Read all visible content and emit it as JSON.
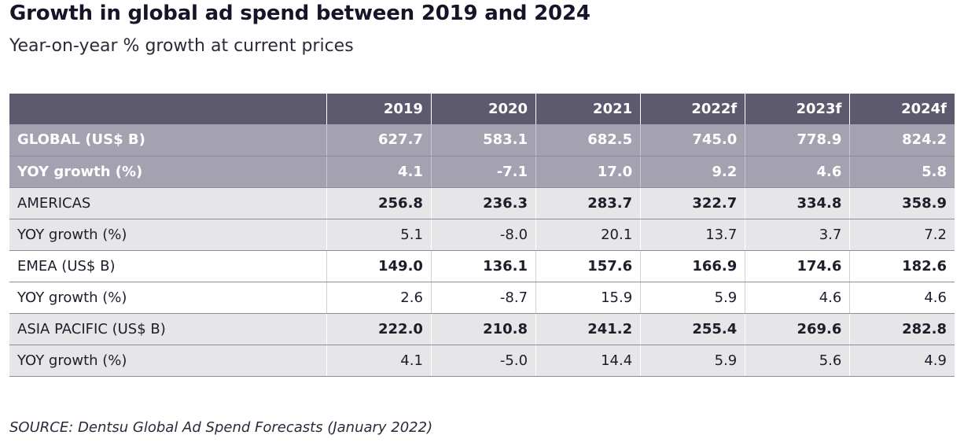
{
  "title": "Growth in global ad spend between 2019 and 2024",
  "subtitle": "Year-on-year % growth at current prices",
  "source": "SOURCE: Dentsu Global Ad Spend Forecasts (January 2022)",
  "colors": {
    "header_bg": "#5d596e",
    "global_bg": "#a4a1b1",
    "grey_row_bg": "#e6e6e8",
    "white_row_bg": "#ffffff",
    "text_dark": "#1d1d2b"
  },
  "chart_data": {
    "type": "table",
    "title": "Growth in global ad spend between 2019 and 2024",
    "subtitle": "Year-on-year % growth at current prices",
    "columns": [
      "",
      "2019",
      "2020",
      "2021",
      "2022f",
      "2023f",
      "2024f"
    ],
    "rows": [
      {
        "label": "GLOBAL (US$ B)",
        "style": "global",
        "values": [
          "627.7",
          "583.1",
          "682.5",
          "745.0",
          "778.9",
          "824.2"
        ]
      },
      {
        "label": "YOY growth (%)",
        "style": "global",
        "values": [
          "4.1",
          "-7.1",
          "17.0",
          "9.2",
          "4.6",
          "5.8"
        ]
      },
      {
        "label": "AMERICAS",
        "style": "grey region",
        "values": [
          "256.8",
          "236.3",
          "283.7",
          "322.7",
          "334.8",
          "358.9"
        ]
      },
      {
        "label": "YOY growth (%)",
        "style": "grey",
        "values": [
          "5.1",
          "-8.0",
          "20.1",
          "13.7",
          "3.7",
          "7.2"
        ]
      },
      {
        "label": "EMEA (US$ B)",
        "style": "white region",
        "values": [
          "149.0",
          "136.1",
          "157.6",
          "166.9",
          "174.6",
          "182.6"
        ]
      },
      {
        "label": "YOY growth (%)",
        "style": "white",
        "values": [
          "2.6",
          "-8.7",
          "15.9",
          "5.9",
          "4.6",
          "4.6"
        ]
      },
      {
        "label": "ASIA PACIFIC (US$ B)",
        "style": "grey region",
        "values": [
          "222.0",
          "210.8",
          "241.2",
          "255.4",
          "269.6",
          "282.8"
        ]
      },
      {
        "label": "YOY growth (%)",
        "style": "grey",
        "values": [
          "4.1",
          "-5.0",
          "14.4",
          "5.9",
          "5.6",
          "4.9"
        ]
      }
    ]
  }
}
